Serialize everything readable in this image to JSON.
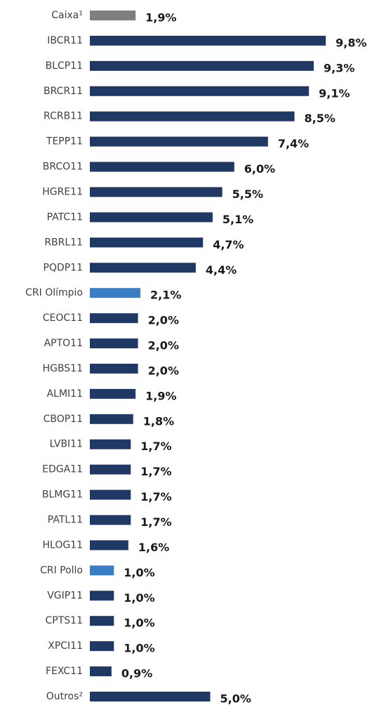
{
  "chart_data": {
    "type": "barh",
    "categories": [
      "Caixa¹",
      "IBCR11",
      "BLCP11",
      "BRCR11",
      "RCRB11",
      "TEPP11",
      "BRCO11",
      "HGRE11",
      "PATC11",
      "RBRL11",
      "PQDP11",
      "CRI Olímpio",
      "CEOC11",
      "APTO11",
      "HGBS11",
      "ALMI11",
      "CBOP11",
      "LVBI11",
      "EDGA11",
      "BLMG11",
      "PATL11",
      "HLOG11",
      "CRI Pollo",
      "VGIP11",
      "CPTS11",
      "XPCI11",
      "FEXC11",
      "Outros²"
    ],
    "values": [
      1.9,
      9.8,
      9.3,
      9.1,
      8.5,
      7.4,
      6.0,
      5.5,
      5.1,
      4.7,
      4.4,
      2.1,
      2.0,
      2.0,
      2.0,
      1.9,
      1.8,
      1.7,
      1.7,
      1.7,
      1.7,
      1.6,
      1.0,
      1.0,
      1.0,
      1.0,
      0.9,
      5.0
    ],
    "value_labels": [
      "1,9%",
      "9,8%",
      "9,3%",
      "9,1%",
      "8,5%",
      "7,4%",
      "6,0%",
      "5,5%",
      "5,1%",
      "4,7%",
      "4,4%",
      "2,1%",
      "2,0%",
      "2,0%",
      "2,0%",
      "1,9%",
      "1,8%",
      "1,7%",
      "1,7%",
      "1,7%",
      "1,7%",
      "1,6%",
      "1,0%",
      "1,0%",
      "1,0%",
      "1,0%",
      "0,9%",
      "5,0%"
    ],
    "colors": [
      "#7f7f7f",
      "#1f3864",
      "#1f3864",
      "#1f3864",
      "#1f3864",
      "#1f3864",
      "#1f3864",
      "#1f3864",
      "#1f3864",
      "#1f3864",
      "#1f3864",
      "#3b7dc4",
      "#1f3864",
      "#1f3864",
      "#1f3864",
      "#1f3864",
      "#1f3864",
      "#1f3864",
      "#1f3864",
      "#1f3864",
      "#1f3864",
      "#1f3864",
      "#3b7dc4",
      "#1f3864",
      "#1f3864",
      "#1f3864",
      "#1f3864",
      "#1f3864"
    ],
    "xlim": [
      0,
      10
    ]
  }
}
